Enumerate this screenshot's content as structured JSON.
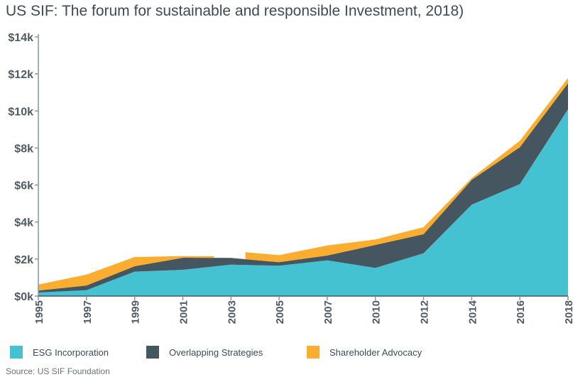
{
  "chart_data": {
    "type": "area",
    "stacked": true,
    "title": "US SIF: The forum for sustainable and responsible Investment, 2018)",
    "source": "Source: US SIF Foundation",
    "categories": [
      "1995",
      "1997",
      "1999",
      "2001",
      "2003",
      "2005",
      "2007",
      "2010",
      "2012",
      "2014",
      "2016",
      "2018"
    ],
    "ylim": [
      0,
      14
    ],
    "yticks": [
      0,
      2,
      4,
      6,
      8,
      10,
      12,
      14
    ],
    "ytick_labels": [
      "$0k",
      "$2k",
      "$4k",
      "$6k",
      "$8k",
      "$10k",
      "$12k",
      "$14k"
    ],
    "legend_position": "bottom",
    "series": [
      {
        "name": "ESG Incorporation",
        "color": "#45c2d2",
        "values": [
          0.19,
          0.32,
          1.32,
          1.42,
          1.7,
          1.64,
          1.93,
          1.52,
          2.31,
          4.94,
          6.05,
          10.09
        ]
      },
      {
        "name": "Overlapping Strategies",
        "color": "#465660",
        "values": [
          0.11,
          0.25,
          0.29,
          0.65,
          0.36,
          0.19,
          0.26,
          1.24,
          1.03,
          1.34,
          1.99,
          1.41
        ]
      },
      {
        "name": "Shareholder Advocacy",
        "color": "#fbad30",
        "values": [
          0.32,
          0.59,
          0.5,
          0.09,
          null,
          0.38,
          0.54,
          0.3,
          0.38,
          0.1,
          0.35,
          0.28
        ]
      }
    ]
  }
}
